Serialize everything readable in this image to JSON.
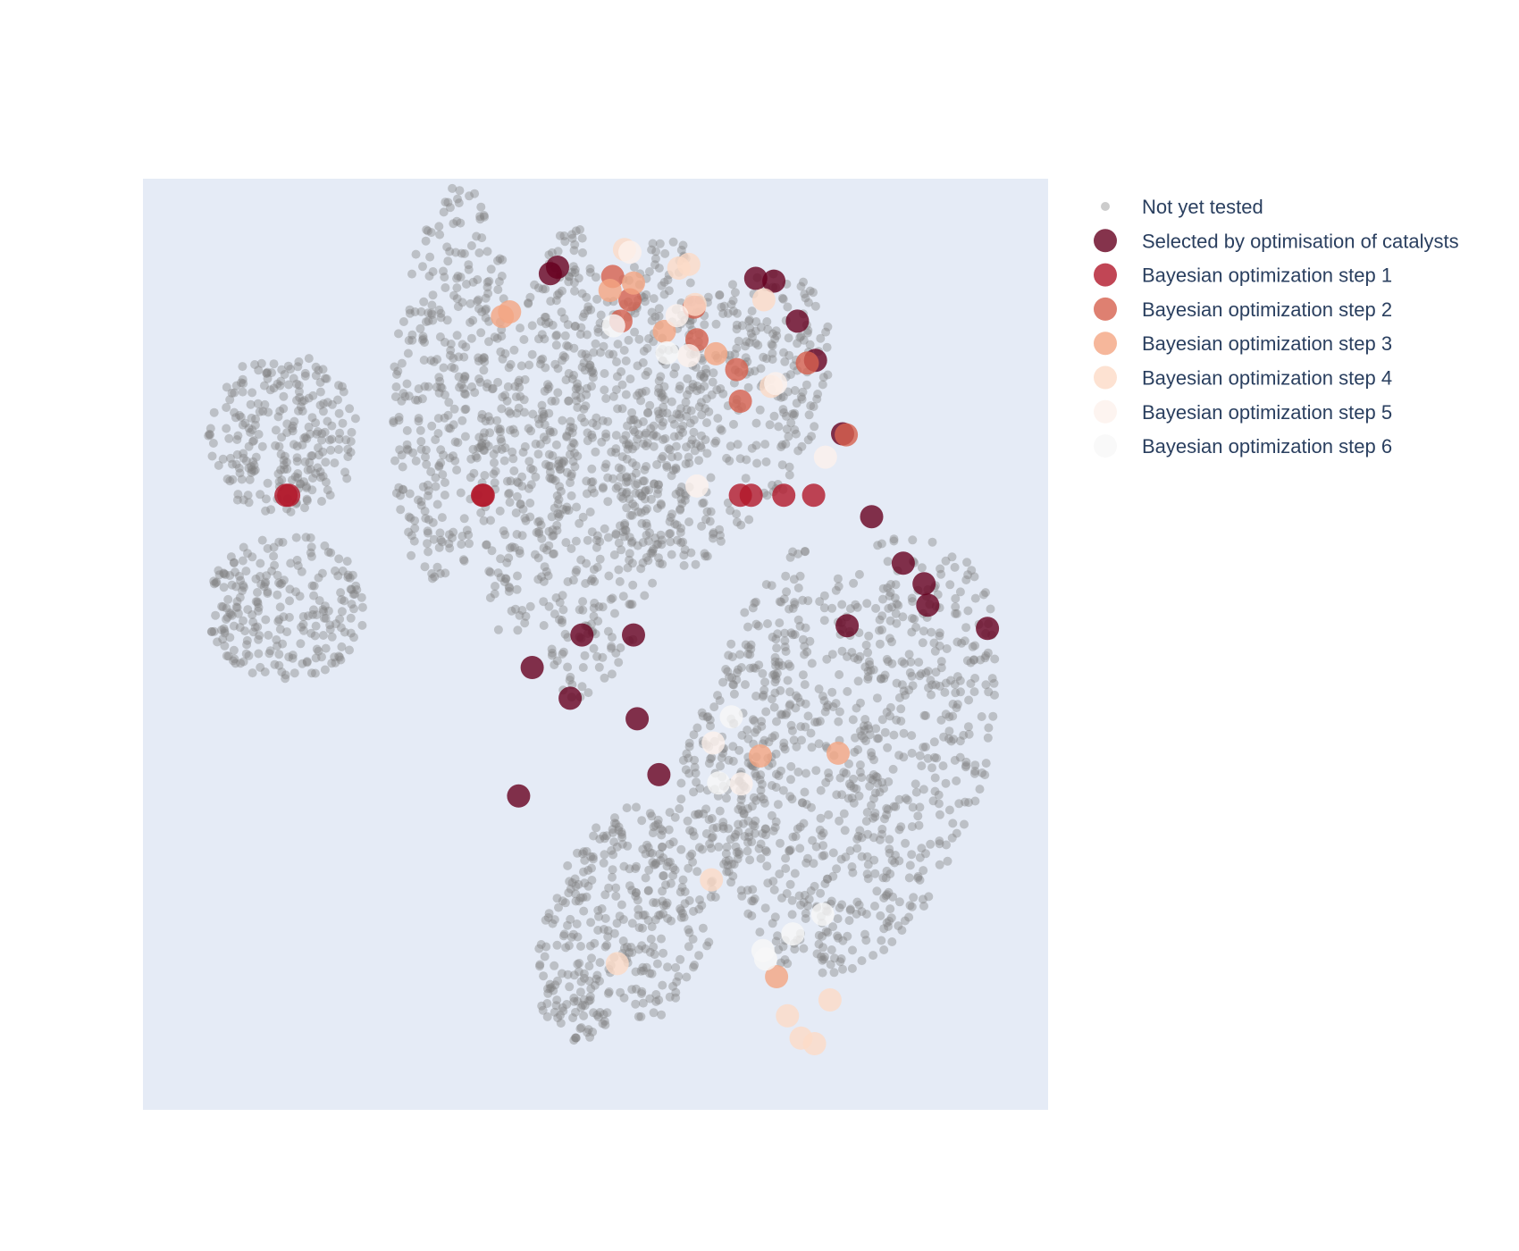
{
  "chart_data": {
    "type": "scatter",
    "title": "",
    "xlabel": "",
    "ylabel": "",
    "grid": false,
    "axes_visible": false,
    "xlim": [
      0,
      100
    ],
    "ylim": [
      0,
      100
    ],
    "plot_background": "#e5ebf6",
    "legend_position": "right",
    "background": {
      "name": "Not yet tested",
      "color": "#808080",
      "opacity": 0.4,
      "clusters": [
        {
          "id": "left-top",
          "cx": 15.5,
          "cy": 72.5,
          "rx": 8.5,
          "ry": 9.0,
          "n": 240,
          "tilt": 0
        },
        {
          "id": "left-bottom",
          "cx": 15.8,
          "cy": 54.0,
          "rx": 9.0,
          "ry": 8.0,
          "n": 230,
          "tilt": 0
        },
        {
          "id": "band-1",
          "cx": 34.0,
          "cy": 78.0,
          "rx": 6.5,
          "ry": 22.0,
          "n": 340,
          "tilt": -4
        },
        {
          "id": "band-2",
          "cx": 44.0,
          "cy": 73.0,
          "rx": 5.0,
          "ry": 23.0,
          "n": 300,
          "tilt": -10
        },
        {
          "id": "band-3",
          "cx": 53.0,
          "cy": 69.0,
          "rx": 7.5,
          "ry": 26.0,
          "n": 420,
          "tilt": -12
        },
        {
          "id": "band-4",
          "cx": 64.0,
          "cy": 74.0,
          "rx": 10.0,
          "ry": 18.0,
          "n": 360,
          "tilt": -28
        },
        {
          "id": "lower-left",
          "cx": 51.0,
          "cy": 20.0,
          "rx": 6.5,
          "ry": 13.5,
          "n": 260,
          "tilt": -20
        },
        {
          "id": "lower-mid",
          "cx": 64.0,
          "cy": 35.0,
          "rx": 5.0,
          "ry": 28.0,
          "n": 320,
          "tilt": -18
        },
        {
          "id": "lower-right",
          "cx": 80.0,
          "cy": 38.0,
          "rx": 13.5,
          "ry": 25.0,
          "n": 700,
          "tilt": -18
        }
      ]
    },
    "series": [
      {
        "name": "Selected by optimisation of catalysts",
        "color": "#67001f",
        "opacity": 0.8,
        "x": [
          45.8,
          67.7,
          72.3,
          77.3,
          80.5,
          84.0,
          86.7,
          93.3,
          48.5,
          54.2,
          43.0,
          47.2,
          54.6,
          41.5,
          57.0,
          45.0,
          77.8,
          69.7,
          74.3,
          86.3
        ],
        "y": [
          90.5,
          89.3,
          84.7,
          72.6,
          63.7,
          58.7,
          54.2,
          51.7,
          51.0,
          51.0,
          47.5,
          44.2,
          42.0,
          33.7,
          36.0,
          89.8,
          52.0,
          89.0,
          80.5,
          56.5
        ]
      },
      {
        "name": "Bayesian optimization step 1",
        "color": "#b2182b",
        "opacity": 0.8,
        "x": [
          15.8,
          16.1,
          37.5,
          37.6,
          67.2,
          66.0,
          74.1,
          70.8
        ],
        "y": 66.0
      },
      {
        "name": "Bayesian optimization step 2",
        "color": "#d6604d",
        "opacity": 0.8,
        "x": [
          51.9,
          53.8,
          52.8,
          60.9,
          61.2,
          65.6,
          73.4,
          66.0,
          77.7
        ],
        "y": [
          89.5,
          87.0,
          84.7,
          86.2,
          82.7,
          79.5,
          80.2,
          76.1,
          72.5
        ]
      },
      {
        "name": "Bayesian optimization step 3",
        "color": "#f4a582",
        "opacity": 0.8,
        "x": [
          39.7,
          40.5,
          51.6,
          54.2,
          57.6,
          63.3,
          68.2,
          76.8,
          70.0
        ],
        "y": [
          85.2,
          85.7,
          88.0,
          88.8,
          83.6,
          81.2,
          38.0,
          38.3,
          14.3
        ]
      },
      {
        "name": "Bayesian optimization step 4",
        "color": "#fddbc7",
        "opacity": 0.8,
        "x": [
          53.2,
          59.2,
          60.3,
          61.0,
          68.6,
          69.4,
          52.4,
          62.8,
          71.2,
          72.7,
          75.9,
          74.2
        ],
        "y": [
          92.4,
          90.4,
          90.8,
          86.5,
          87.0,
          77.7,
          15.7,
          24.7,
          10.1,
          7.7,
          11.8,
          7.1
        ]
      },
      {
        "name": "Bayesian optimization step 5",
        "color": "#fdf1ec",
        "opacity": 0.8,
        "x": [
          53.8,
          59.0,
          60.3,
          61.2,
          69.9,
          75.4,
          66.1,
          63.0
        ],
        "y": [
          92.1,
          85.3,
          81.0,
          67.0,
          78.0,
          70.1,
          35.0,
          39.4
        ]
      },
      {
        "name": "Bayesian optimization step 6",
        "color": "#f7f7f7",
        "opacity": 0.8,
        "x": [
          52.0,
          57.9,
          65.0,
          63.6,
          68.8,
          75.1,
          71.8,
          68.5
        ],
        "y": [
          84.2,
          81.3,
          42.2,
          35.1,
          16.2,
          21.0,
          18.9,
          17.1
        ]
      }
    ]
  }
}
